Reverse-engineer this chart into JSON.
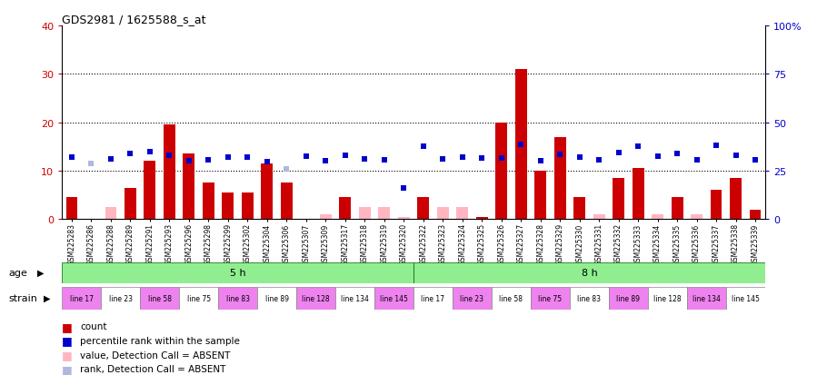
{
  "title": "GDS2981 / 1625588_s_at",
  "samples": [
    "GSM225283",
    "GSM225286",
    "GSM225288",
    "GSM225289",
    "GSM225291",
    "GSM225293",
    "GSM225296",
    "GSM225298",
    "GSM225299",
    "GSM225302",
    "GSM225304",
    "GSM225306",
    "GSM225307",
    "GSM225309",
    "GSM225317",
    "GSM225318",
    "GSM225319",
    "GSM225320",
    "GSM225322",
    "GSM225323",
    "GSM225324",
    "GSM225325",
    "GSM225326",
    "GSM225327",
    "GSM225328",
    "GSM225329",
    "GSM225330",
    "GSM225331",
    "GSM225332",
    "GSM225333",
    "GSM225334",
    "GSM225335",
    "GSM225336",
    "GSM225337",
    "GSM225338",
    "GSM225339"
  ],
  "count": [
    4.5,
    0,
    2.5,
    6.5,
    12,
    19.5,
    13.5,
    7.5,
    5.5,
    5.5,
    11.5,
    7.5,
    0,
    1,
    4.5,
    2.5,
    2.5,
    0.5,
    4.5,
    2.5,
    2.5,
    0.5,
    20,
    31,
    10,
    17,
    4.5,
    1,
    8.5,
    10.5,
    1,
    4.5,
    1,
    6,
    8.5,
    2
  ],
  "count_absent": [
    false,
    true,
    true,
    false,
    false,
    false,
    false,
    false,
    false,
    false,
    false,
    false,
    true,
    true,
    false,
    true,
    true,
    true,
    false,
    true,
    true,
    false,
    false,
    false,
    false,
    false,
    false,
    true,
    false,
    false,
    true,
    false,
    true,
    false,
    false,
    false
  ],
  "rank": [
    32,
    28.5,
    31,
    34,
    35,
    33,
    30,
    30.5,
    32,
    32,
    29.5,
    26,
    32.5,
    30,
    33,
    31,
    30.5,
    16,
    37.5,
    31,
    32,
    31.5,
    31.5,
    38.5,
    30,
    33.5,
    32,
    30.5,
    34.5,
    37.5,
    32.5,
    34,
    30.5,
    38,
    33,
    30.5
  ],
  "rank_absent": [
    false,
    true,
    false,
    false,
    false,
    false,
    false,
    false,
    false,
    false,
    false,
    true,
    false,
    false,
    false,
    false,
    false,
    false,
    false,
    false,
    false,
    false,
    false,
    false,
    false,
    false,
    false,
    false,
    false,
    false,
    false,
    false,
    false,
    false,
    false,
    false
  ],
  "rank_size": [
    5,
    5,
    5,
    5,
    5,
    5,
    5,
    5,
    5,
    5,
    5,
    5,
    5,
    5,
    5,
    5,
    5,
    5,
    5,
    5,
    5,
    5,
    5,
    5,
    5,
    5,
    5,
    5,
    5,
    5,
    5,
    5,
    5,
    5,
    5,
    5
  ],
  "strain_groups": [
    {
      "label": "line 17",
      "start": 0,
      "end": 2,
      "color": "#ee82ee"
    },
    {
      "label": "line 23",
      "start": 2,
      "end": 4,
      "color": "#ffffff"
    },
    {
      "label": "line 58",
      "start": 4,
      "end": 6,
      "color": "#ee82ee"
    },
    {
      "label": "line 75",
      "start": 6,
      "end": 8,
      "color": "#ffffff"
    },
    {
      "label": "line 83",
      "start": 8,
      "end": 10,
      "color": "#ee82ee"
    },
    {
      "label": "line 89",
      "start": 10,
      "end": 12,
      "color": "#ffffff"
    },
    {
      "label": "line 128",
      "start": 12,
      "end": 14,
      "color": "#ee82ee"
    },
    {
      "label": "line 134",
      "start": 14,
      "end": 16,
      "color": "#ffffff"
    },
    {
      "label": "line 145",
      "start": 16,
      "end": 18,
      "color": "#ee82ee"
    },
    {
      "label": "line 17",
      "start": 18,
      "end": 20,
      "color": "#ffffff"
    },
    {
      "label": "line 23",
      "start": 20,
      "end": 22,
      "color": "#ee82ee"
    },
    {
      "label": "line 58",
      "start": 22,
      "end": 24,
      "color": "#ffffff"
    },
    {
      "label": "line 75",
      "start": 24,
      "end": 26,
      "color": "#ee82ee"
    },
    {
      "label": "line 83",
      "start": 26,
      "end": 28,
      "color": "#ffffff"
    },
    {
      "label": "line 89",
      "start": 28,
      "end": 30,
      "color": "#ee82ee"
    },
    {
      "label": "line 128",
      "start": 30,
      "end": 32,
      "color": "#ffffff"
    },
    {
      "label": "line 134",
      "start": 32,
      "end": 34,
      "color": "#ee82ee"
    },
    {
      "label": "line 145",
      "start": 34,
      "end": 36,
      "color": "#ffffff"
    }
  ],
  "ylim_left": [
    0,
    40
  ],
  "ylim_right": [
    0,
    100
  ],
  "yticks_left": [
    0,
    10,
    20,
    30,
    40
  ],
  "yticks_right": [
    0,
    25,
    50,
    75,
    100
  ],
  "ytick_labels_right": [
    "0",
    "25",
    "50",
    "75",
    "100%"
  ],
  "bar_color_present": "#cc0000",
  "bar_color_absent": "#ffb6c1",
  "rank_color_present": "#0000cc",
  "rank_color_absent": "#b0b8dd",
  "bg_color": "#ffffff",
  "grid_dotted_color": "#000000",
  "age_5h_color": "#90ee90",
  "age_8h_color": "#90ee90",
  "age_border_color": "#006400",
  "legend": [
    {
      "color": "#cc0000",
      "label": "count"
    },
    {
      "color": "#0000cc",
      "label": "percentile rank within the sample"
    },
    {
      "color": "#ffb6c1",
      "label": "value, Detection Call = ABSENT"
    },
    {
      "color": "#b0b8dd",
      "label": "rank, Detection Call = ABSENT"
    }
  ]
}
